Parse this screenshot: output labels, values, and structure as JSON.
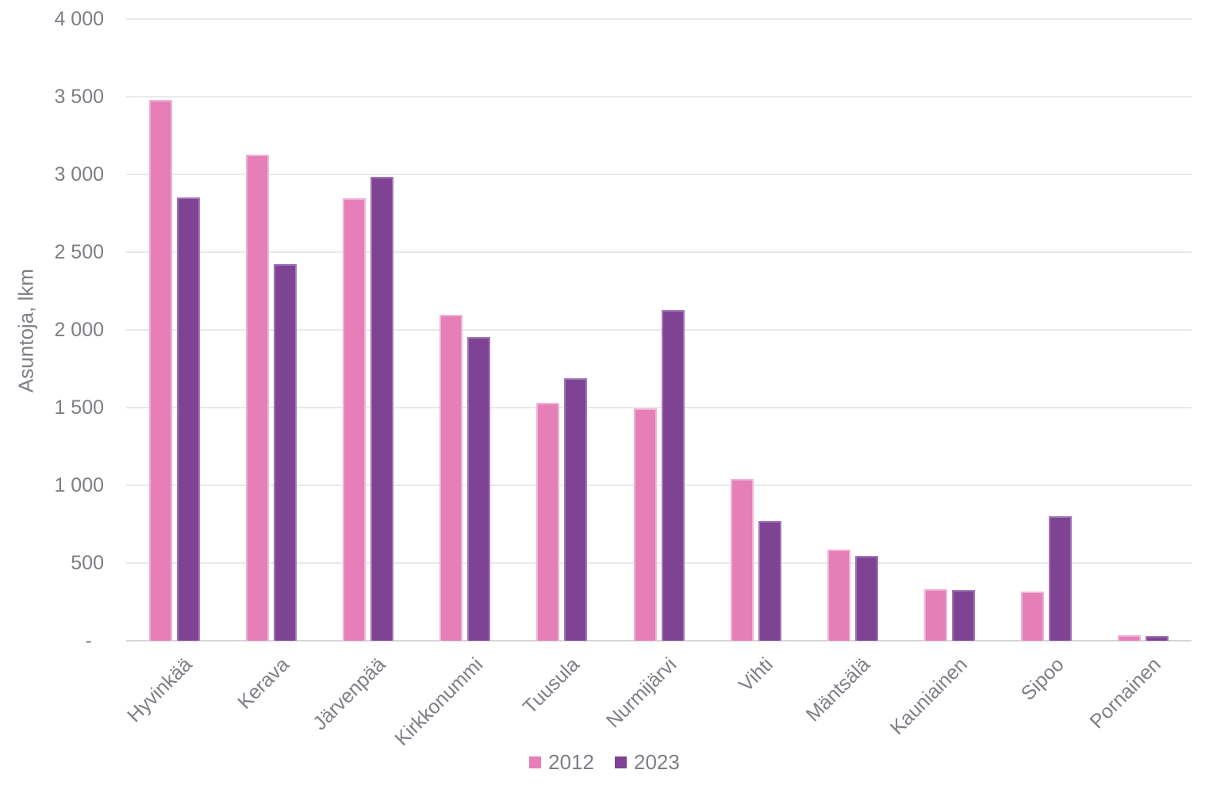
{
  "chart_data": {
    "type": "bar",
    "title": "",
    "ylabel": "Asuntoja, lkm",
    "xlabel": "",
    "ylim": [
      0,
      4000
    ],
    "ytick_interval": 500,
    "ytick_labels_top_to_bottom": [
      "4 000",
      "3 500",
      "3 000",
      "2 500",
      "2 000",
      "1 500",
      "1 000",
      "500",
      "-"
    ],
    "grid": true,
    "legend_position": "bottom-center",
    "categories": [
      "Hyvinkää",
      "Kerava",
      "Järvenpää",
      "Kirkkonummi",
      "Tuusula",
      "Nurmijärvi",
      "Vihti",
      "Mäntsälä",
      "Kauniainen",
      "Sipoo",
      "Pornainen"
    ],
    "series": [
      {
        "name": "2012",
        "color": "#e67eb7",
        "border_color": "#f1b3d6",
        "values": [
          3480,
          3130,
          2845,
          2095,
          1530,
          1495,
          1040,
          585,
          330,
          315,
          35
        ]
      },
      {
        "name": "2023",
        "color": "#7f4394",
        "border_color": "#a276b8",
        "values": [
          2850,
          2425,
          2985,
          1955,
          1690,
          2130,
          770,
          545,
          325,
          800,
          30
        ]
      }
    ]
  },
  "colors": {
    "background": "#ffffff",
    "text": "#7e7e86",
    "gridline": "#e9e9eb",
    "axis_line": "#d7d7d9"
  }
}
